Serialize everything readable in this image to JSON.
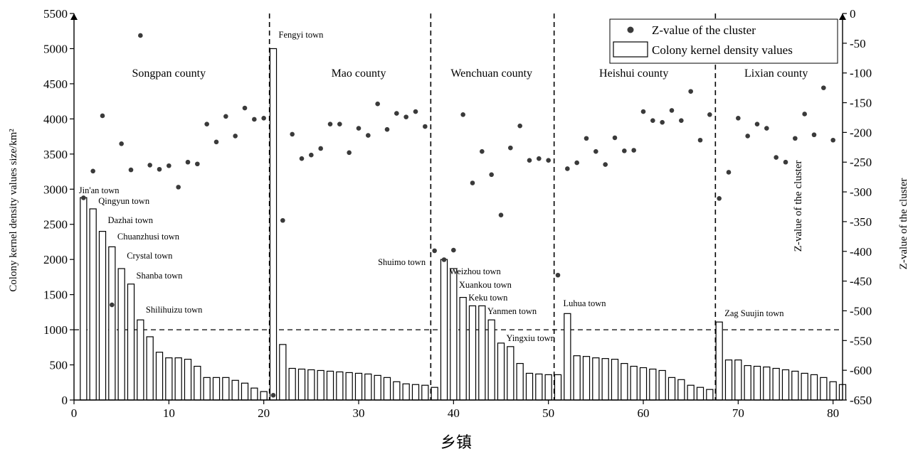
{
  "chart_data": {
    "type": "bar",
    "xlabel": "乡镇",
    "ylabel_left": "Colony kernel density values size/km²",
    "ylabel_right": "Z-value of the cluster",
    "xlim": [
      0,
      81
    ],
    "ylim_left": [
      0,
      5500
    ],
    "ylim_right": [
      -650,
      0
    ],
    "x_ticks": [
      0,
      10,
      20,
      30,
      40,
      50,
      60,
      70,
      80
    ],
    "y_left_ticks": [
      0,
      500,
      1000,
      1500,
      2000,
      2500,
      3000,
      3500,
      4000,
      4500,
      5000,
      5500
    ],
    "y_right_ticks": [
      0,
      -50,
      -100,
      -150,
      -200,
      -250,
      -300,
      -350,
      -400,
      -450,
      -500,
      -550,
      -600,
      -650
    ],
    "threshold_line": 1000,
    "county_dividers": [
      20.6,
      37.6,
      50.6,
      67.6
    ],
    "legend": {
      "position": "top-right",
      "dots": "Z-value of the cluster",
      "bars": "Colony kernel density values"
    },
    "counties": [
      {
        "name": "Songpan county",
        "x": 10
      },
      {
        "name": "Mao county",
        "x": 30
      },
      {
        "name": "Wenchuan county",
        "x": 44
      },
      {
        "name": "Heishui county",
        "x": 59
      },
      {
        "name": "Lixian county",
        "x": 74
      }
    ],
    "bars": [
      2880,
      2720,
      2400,
      2180,
      1870,
      1650,
      1140,
      900,
      680,
      600,
      600,
      580,
      480,
      320,
      320,
      320,
      280,
      240,
      170,
      120,
      5000,
      790,
      450,
      440,
      430,
      420,
      410,
      400,
      390,
      380,
      370,
      350,
      320,
      260,
      230,
      220,
      210,
      180,
      2000,
      1870,
      1460,
      1340,
      1340,
      1140,
      810,
      760,
      520,
      380,
      370,
      360,
      360,
      1230,
      630,
      620,
      600,
      590,
      580,
      520,
      480,
      460,
      440,
      420,
      320,
      290,
      210,
      180,
      150,
      1110,
      570,
      570,
      490,
      480,
      470,
      450,
      430,
      410,
      380,
      360,
      320,
      260,
      220
    ],
    "z_values": [
      [
        1,
        -310
      ],
      [
        2,
        -265
      ],
      [
        3,
        -172
      ],
      [
        4,
        -490
      ],
      [
        5,
        -219
      ],
      [
        6,
        -263
      ],
      [
        7,
        -37
      ],
      [
        8,
        -255
      ],
      [
        9,
        -262
      ],
      [
        10,
        -256
      ],
      [
        11,
        -292
      ],
      [
        12,
        -250
      ],
      [
        13,
        -253
      ],
      [
        14,
        -186
      ],
      [
        15,
        -216
      ],
      [
        16,
        -173
      ],
      [
        17,
        -206
      ],
      [
        18,
        -159
      ],
      [
        19,
        -178
      ],
      [
        20,
        -176
      ],
      [
        21,
        -642
      ],
      [
        22,
        -348
      ],
      [
        23,
        -203
      ],
      [
        24,
        -244
      ],
      [
        25,
        -238
      ],
      [
        26,
        -227
      ],
      [
        27,
        -186
      ],
      [
        28,
        -186
      ],
      [
        29,
        -234
      ],
      [
        30,
        -193
      ],
      [
        31,
        -205
      ],
      [
        32,
        -152
      ],
      [
        33,
        -195
      ],
      [
        34,
        -168
      ],
      [
        35,
        -174
      ],
      [
        36,
        -165
      ],
      [
        37,
        -190
      ],
      [
        38,
        -399
      ],
      [
        39,
        -414
      ],
      [
        40,
        -398
      ],
      [
        41,
        -170
      ],
      [
        42,
        -285
      ],
      [
        43,
        -232
      ],
      [
        44,
        -271
      ],
      [
        45,
        -339
      ],
      [
        46,
        -226
      ],
      [
        47,
        -189
      ],
      [
        48,
        -247
      ],
      [
        49,
        -244
      ],
      [
        50,
        -247
      ],
      [
        51,
        -440
      ],
      [
        52,
        -261
      ],
      [
        53,
        -251
      ],
      [
        54,
        -210
      ],
      [
        55,
        -232
      ],
      [
        56,
        -254
      ],
      [
        57,
        -209
      ],
      [
        58,
        -231
      ],
      [
        59,
        -230
      ],
      [
        60,
        -165
      ],
      [
        61,
        -180
      ],
      [
        62,
        -183
      ],
      [
        63,
        -163
      ],
      [
        64,
        -180
      ],
      [
        65,
        -131
      ],
      [
        66,
        -213
      ],
      [
        67,
        -170
      ],
      [
        68,
        -311
      ],
      [
        69,
        -267
      ],
      [
        70,
        -176
      ],
      [
        71,
        -206
      ],
      [
        72,
        -186
      ],
      [
        73,
        -193
      ],
      [
        74,
        -242
      ],
      [
        75,
        -250
      ],
      [
        76,
        -210
      ],
      [
        77,
        -169
      ],
      [
        78,
        -204
      ],
      [
        79,
        -125
      ],
      [
        80,
        -213
      ]
    ],
    "town_labels": [
      {
        "text": "Jin'an town",
        "x": 1
      },
      {
        "text": "Qingyun town",
        "x": 2
      },
      {
        "text": "Dazhai town",
        "x": 3
      },
      {
        "text": "Chuanzhusi town",
        "x": 4
      },
      {
        "text": "Crystal town",
        "x": 5
      },
      {
        "text": "Shanba town",
        "x": 6
      },
      {
        "text": "Shilihuizu town",
        "x": 7
      },
      {
        "text": "Fengyi town",
        "x": 21
      },
      {
        "text": "Shuimo town",
        "x": 38
      },
      {
        "text": "Weizhou town",
        "x": 39
      },
      {
        "text": "Xuankou town",
        "x": 40
      },
      {
        "text": "Keku town",
        "x": 41
      },
      {
        "text": "Yanmen town",
        "x": 43
      },
      {
        "text": "Yingxiu town",
        "x": 45
      },
      {
        "text": "Luhua town",
        "x": 51
      },
      {
        "text": "Zag Suujin town",
        "x": 68
      }
    ]
  }
}
